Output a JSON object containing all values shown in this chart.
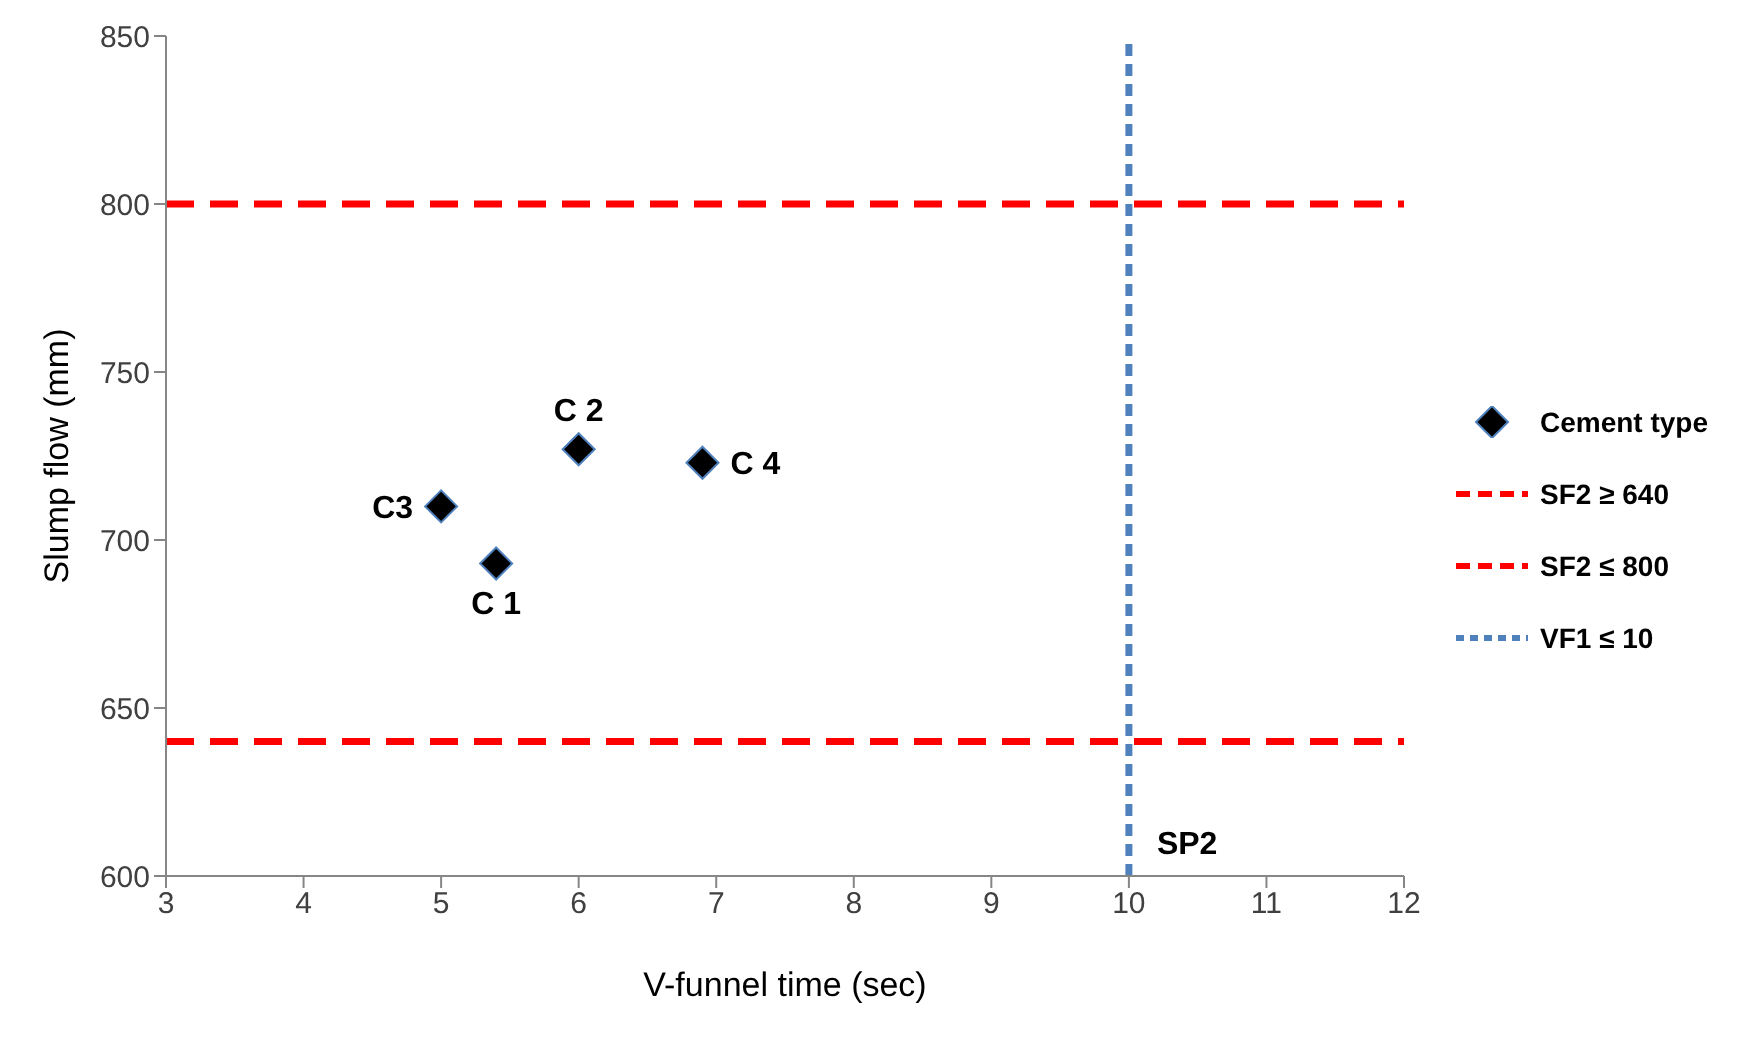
{
  "chart_data": {
    "type": "scatter",
    "xlabel": "V-funnel time (sec)",
    "ylabel": "Slump flow (mm)",
    "xlim": [
      3,
      12
    ],
    "xticks": [
      3,
      4,
      5,
      6,
      7,
      8,
      9,
      10,
      11,
      12
    ],
    "ylim": [
      600,
      850
    ],
    "yticks": [
      600,
      650,
      700,
      750,
      800,
      850
    ],
    "grid": false,
    "legend": "right",
    "marker": "diamond",
    "series": [
      {
        "name": "Cement type",
        "type": "scatter",
        "color": "#000000",
        "x": [
          5.4,
          6.0,
          5.0,
          6.9
        ],
        "values": [
          693,
          727,
          710,
          723
        ]
      },
      {
        "name": "SF2 ≥ 640",
        "type": "line",
        "color": "#ff0000",
        "line_style": "dashed",
        "marker": "none",
        "x": [
          3,
          12
        ],
        "values": [
          640,
          640
        ]
      },
      {
        "name": "SF2 ≤ 800",
        "type": "line",
        "color": "#ff0000",
        "line_style": "dashed",
        "marker": "none",
        "x": [
          3,
          12
        ],
        "values": [
          800,
          800
        ]
      },
      {
        "name": "VF1 ≤ 10",
        "type": "line",
        "color": "#4f81bd",
        "line_style": "dotted",
        "marker": "none",
        "x": [
          10,
          10
        ],
        "values": [
          600,
          850
        ]
      }
    ],
    "annotations": [
      {
        "text": "C 1",
        "x": 5.4,
        "y": 693
      },
      {
        "text": "C 2",
        "x": 6.0,
        "y": 727
      },
      {
        "text": "C3",
        "x": 5.0,
        "y": 710
      },
      {
        "text": "C 4",
        "x": 6.9,
        "y": 723
      },
      {
        "text": "SP2",
        "x": 10,
        "y": 610
      }
    ]
  }
}
